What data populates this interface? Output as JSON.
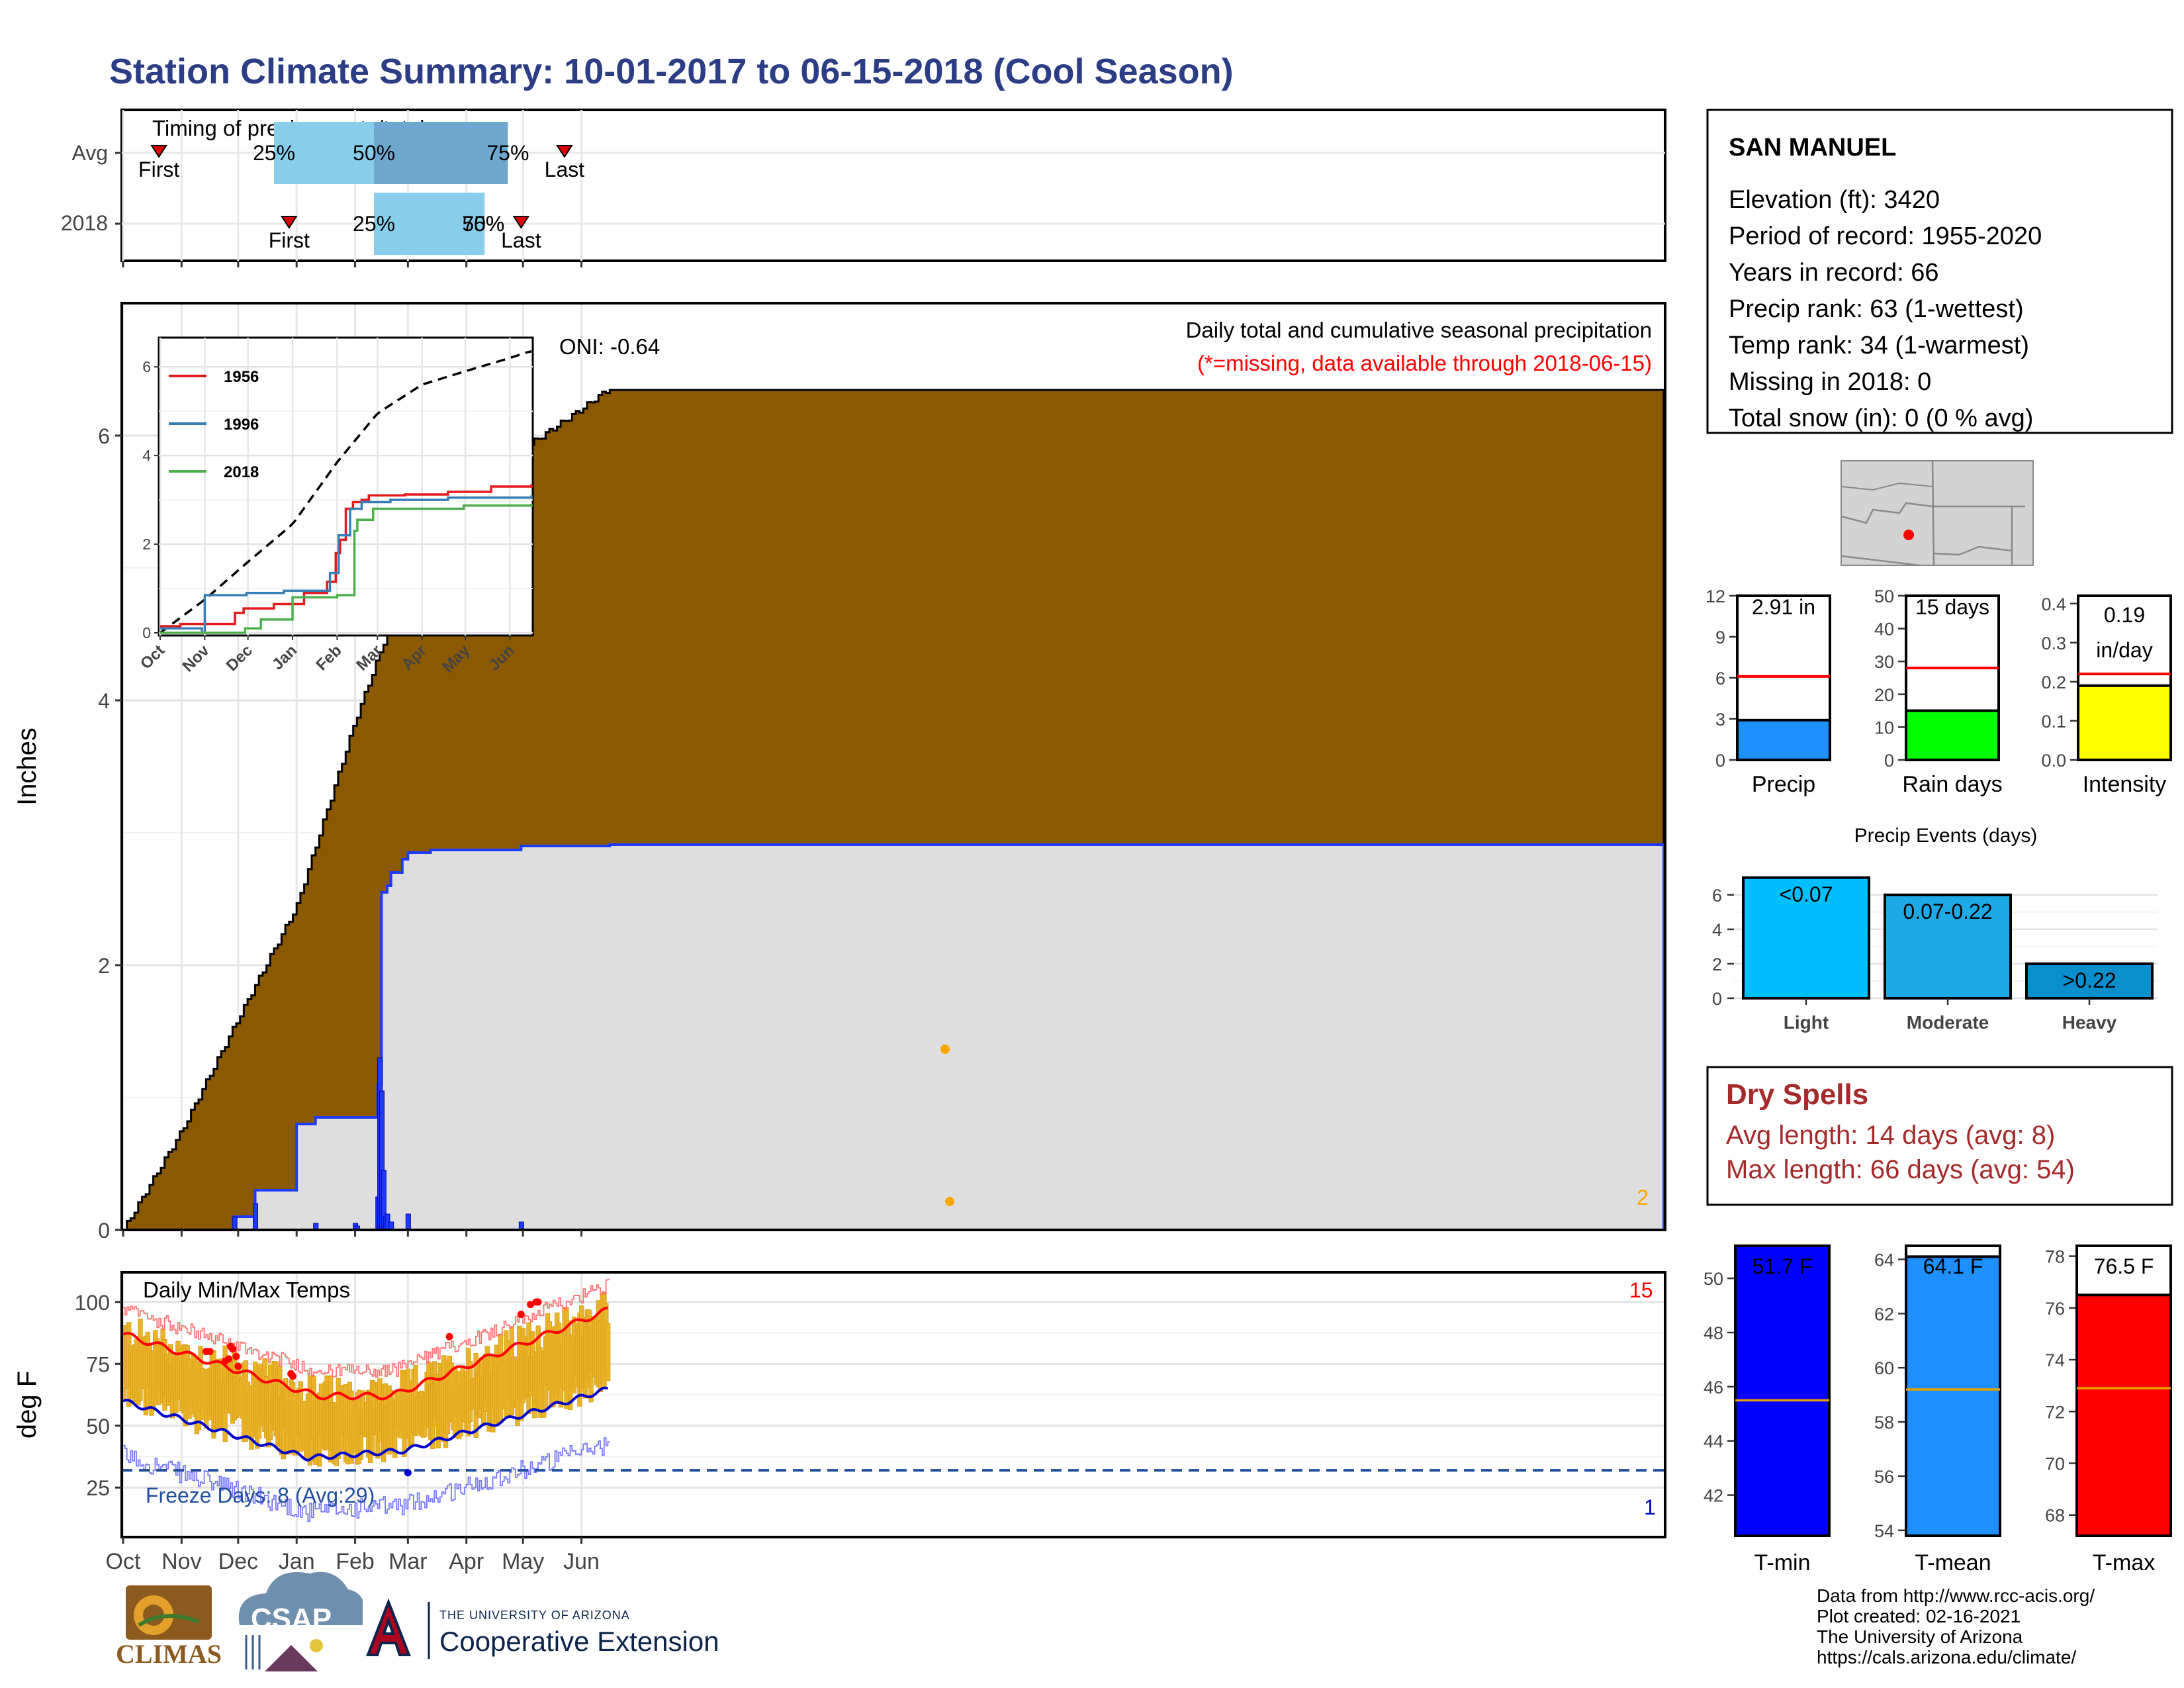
{
  "title": "Station Climate Summary: 10-01-2017 to 06-15-2018 (Cool Season)",
  "month_labels": [
    "Oct",
    "Nov",
    "Dec",
    "Jan",
    "Feb",
    "Mar",
    "Apr",
    "May",
    "Jun"
  ],
  "timing": {
    "title": "Timing of precip events/totals",
    "rows": [
      {
        "label": "Avg",
        "first_label": "First",
        "last_label": "Last",
        "p25": "25%",
        "p50": "50%",
        "p75": "75%",
        "first_day": 19,
        "last_day": 234,
        "p25_day": 80,
        "p50_day": 133,
        "p75_day": 204
      },
      {
        "label": "2018",
        "first_label": "First",
        "last_label": "Last",
        "p25": "25%",
        "p50": "50%",
        "p75": "75%",
        "first_day": 88,
        "last_day": 211,
        "p25_day": 133,
        "p50_day": 191,
        "p75_day": 191
      }
    ]
  },
  "main": {
    "ylabel": "Inches",
    "yticks": [
      "0",
      "2",
      "4",
      "6"
    ],
    "caption": "Daily total and cumulative seasonal precipitation",
    "missing_note": "(*=missing, data available through 2018-06-15)",
    "oni": "ONI: -0.64",
    "corner_count": "2",
    "colors": {
      "avg_fill": "#8B5A00",
      "season_fill": "#DEDEDE",
      "daily": "#1E3CFF",
      "marker": "#FFA500"
    }
  },
  "inset": {
    "yticks": [
      "0",
      "2",
      "4",
      "6"
    ],
    "xticks": [
      "Oct",
      "Nov",
      "Dec",
      "Jan",
      "Feb",
      "Mar",
      "Apr",
      "May",
      "Jun"
    ],
    "legend": [
      {
        "name": "1956",
        "color": "#E41A1C"
      },
      {
        "name": "1996",
        "color": "#377EB8"
      },
      {
        "name": "2018",
        "color": "#4DAF4A"
      }
    ]
  },
  "temps": {
    "ylabel": "deg F",
    "yticks": [
      "25",
      "50",
      "75",
      "100"
    ],
    "title": "Daily Min/Max Temps",
    "freeze_label": "Freeze Days: 8 (Avg:29)",
    "count_high": "15",
    "count_low": "1",
    "freeze_threshold": 32
  },
  "station": {
    "name": "SAN MANUEL",
    "lines": [
      "Elevation (ft): 3420",
      "Period of record: 1955-2020",
      "Years in record: 66",
      "Precip rank: 63 (1-wettest)",
      "Temp rank: 34 (1-warmest)",
      "Missing in 2018: 0",
      "Total snow (in): 0 (0 % avg)"
    ]
  },
  "summary_bars": [
    {
      "label": "Precip",
      "value_text": "2.91 in",
      "value": 2.91,
      "avg": 6.1,
      "ymax": 12,
      "ticks": [
        "0",
        "3",
        "6",
        "9",
        "12"
      ],
      "color": "#1E90FF"
    },
    {
      "label": "Rain days",
      "value_text": "15 days",
      "value": 15,
      "avg": 28,
      "ymax": 50,
      "ticks": [
        "0",
        "10",
        "20",
        "30",
        "40",
        "50"
      ],
      "color": "#00FF00"
    },
    {
      "label": "Intensity",
      "value_text": "0.19 in/day",
      "value": 0.19,
      "avg": 0.22,
      "ymax": 0.42,
      "ticks": [
        "0.0",
        "0.1",
        "0.2",
        "0.3",
        "0.4"
      ],
      "color": "#FFFF00"
    }
  ],
  "precip_events": {
    "title": "Precip Events (days)",
    "ticks": [
      "0",
      "2",
      "4",
      "6"
    ],
    "bars": [
      {
        "label": "Light",
        "range": "<0.07",
        "value": 7,
        "color": "#00BFFF"
      },
      {
        "label": "Moderate",
        "range": "0.07-0.22",
        "value": 6,
        "color": "#1CA9E6"
      },
      {
        "label": "Heavy",
        "range": ">0.22",
        "value": 2,
        "color": "#0A8FCC"
      }
    ]
  },
  "dry_spells": {
    "title": "Dry Spells",
    "avg_line": "Avg length: 14 days (avg: 8)",
    "max_line": "Max length: 66 days (avg: 54)"
  },
  "temp_bars": [
    {
      "label": "T-min",
      "value_text": "51.7 F",
      "value": 51.7,
      "avg": 45.5,
      "ymin": 40.5,
      "ymax": 51.2,
      "ticks": [
        "42",
        "44",
        "46",
        "48",
        "50"
      ],
      "color": "#0000FF"
    },
    {
      "label": "T-mean",
      "value_text": "64.1 F",
      "value": 64.1,
      "avg": 59.2,
      "ymin": 53.8,
      "ymax": 64.5,
      "ticks": [
        "54",
        "56",
        "58",
        "60",
        "62",
        "64"
      ],
      "color": "#1E90FF"
    },
    {
      "label": "T-max",
      "value_text": "76.5 F",
      "value": 76.5,
      "avg": 72.9,
      "ymin": 67.2,
      "ymax": 78.4,
      "ticks": [
        "68",
        "70",
        "72",
        "74",
        "76",
        "78"
      ],
      "color": "#FF0000"
    }
  ],
  "credits": [
    "Data from http://www.rcc-acis.org/",
    "Plot created: 02-16-2021",
    "The University of Arizona",
    "https://cals.arizona.edu/climate/"
  ],
  "logos": {
    "climas": "CLIMAS",
    "csap": "CSAP",
    "ua_small": "THE UNIVERSITY OF ARIZONA",
    "ua_big": "Cooperative Extension"
  },
  "chart_data": {
    "type": "area",
    "x": [
      "2017-10-01",
      "2017-11-01",
      "2017-12-01",
      "2018-01-01",
      "2018-02-01",
      "2018-03-01",
      "2018-04-01",
      "2018-05-01",
      "2018-06-01",
      "2018-06-15"
    ],
    "series": [
      {
        "name": "",
        "values": [
          0.0,
          0.75,
          1.6,
          2.45,
          3.85,
          4.95,
          5.6,
          5.9,
          6.2,
          6.35
        ]
      },
      {
        "name": "",
        "values": [
          0.0,
          0.0,
          0.1,
          0.3,
          0.85,
          2.85,
          2.87,
          2.9,
          2.91,
          2.91
        ]
      }
    ],
    "ylabel": "Inches",
    "ylim": [
      0,
      7
    ]
  }
}
